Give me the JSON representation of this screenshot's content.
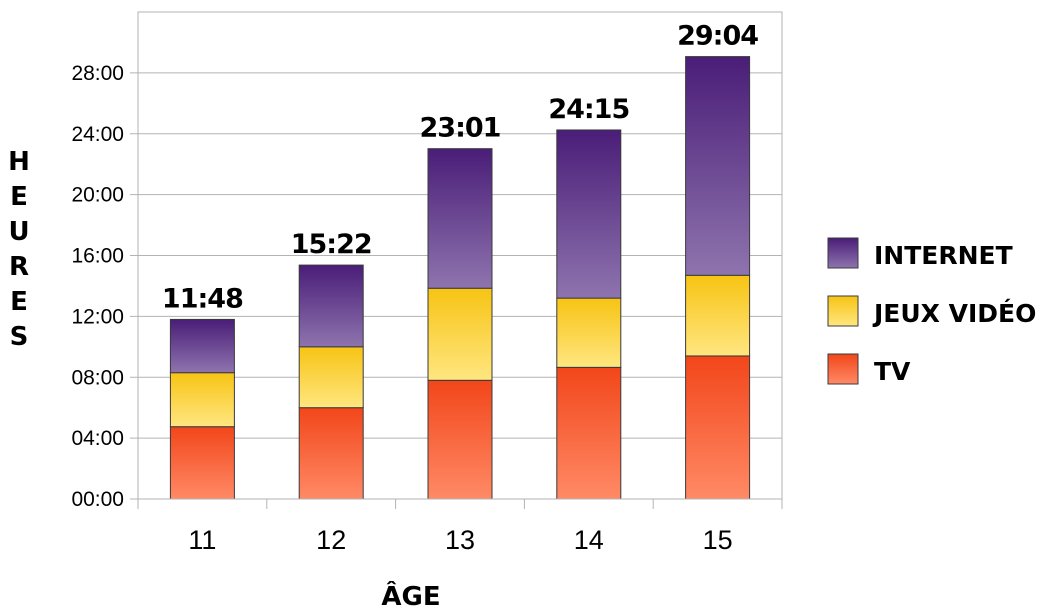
{
  "chart_data": {
    "type": "bar",
    "stacked": true,
    "categories": [
      "11",
      "12",
      "13",
      "14",
      "15"
    ],
    "series": [
      {
        "name": "TV",
        "values": [
          4.75,
          6.0,
          7.8,
          8.65,
          9.4
        ],
        "color": "#f04e1e"
      },
      {
        "name": "JEUX VIDÉO",
        "values": [
          3.55,
          4.0,
          6.05,
          4.55,
          5.3
        ],
        "color": "#f5c417"
      },
      {
        "name": "INTERNET",
        "values": [
          3.5,
          5.37,
          9.17,
          11.05,
          14.37
        ],
        "color": "#5b2a86"
      }
    ],
    "totals": [
      "11:48",
      "15:22",
      "23:01",
      "24:15",
      "29:04"
    ],
    "xlabel": "ÂGE",
    "ylabel": "HEURES",
    "ylim": [
      0,
      32
    ],
    "yticks": [
      "00:00",
      "04:00",
      "08:00",
      "12:00",
      "16:00",
      "20:00",
      "24:00",
      "28:00"
    ],
    "grid": true,
    "legend_position": "right"
  }
}
